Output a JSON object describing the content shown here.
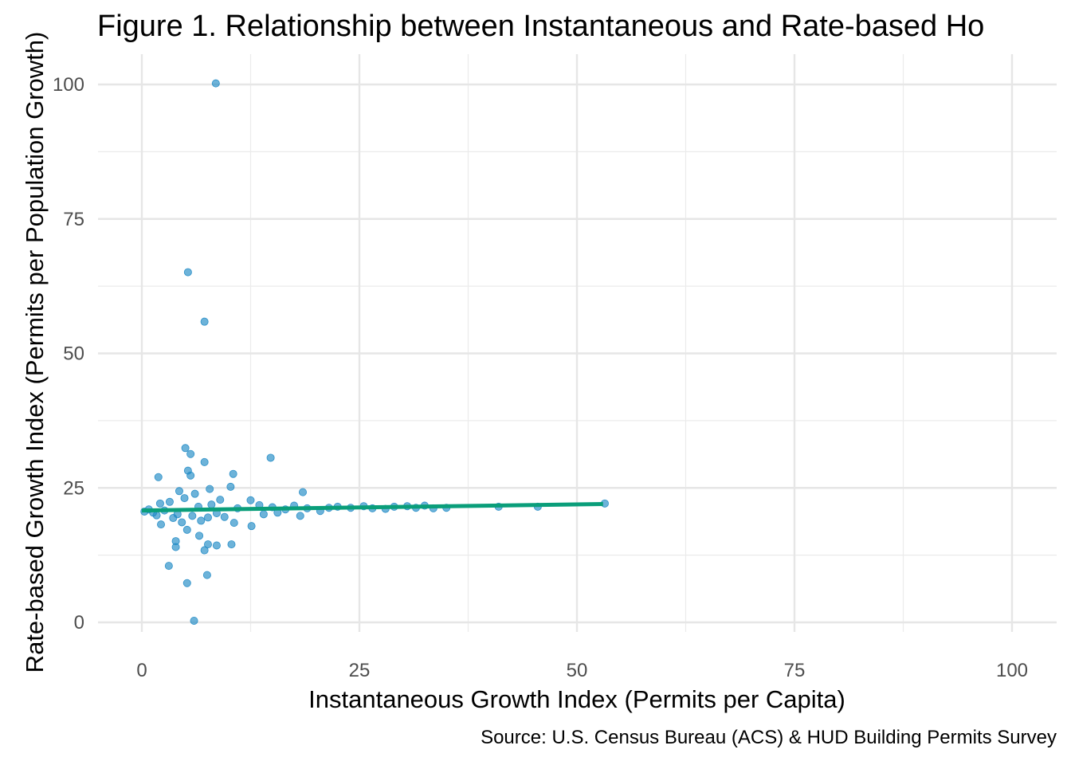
{
  "chart_data": {
    "type": "scatter",
    "title": "Figure 1. Relationship between Instantaneous and Rate-based Ho",
    "xlabel": "Instantaneous Growth Index (Permits per Capita)",
    "ylabel": "Rate-based Growth Index (Permits per Population Growth)",
    "caption": "Source: U.S. Census Bureau (ACS) & HUD Building Permits Survey",
    "xlim": [
      -5,
      105
    ],
    "ylim": [
      -2,
      105
    ],
    "x_ticks": [
      0,
      25,
      50,
      75,
      100
    ],
    "y_ticks": [
      0,
      25,
      50,
      75,
      100
    ],
    "x_tick_labels": [
      "0",
      "25",
      "50",
      "75",
      "100"
    ],
    "y_tick_labels": [
      "0",
      "25",
      "50",
      "75",
      "100"
    ],
    "grid": true,
    "legend": "none",
    "point_color": "#1f8ac5",
    "fit_color": "#0a9e7a",
    "fit_line": {
      "x": [
        0,
        53
      ],
      "y": [
        20.8,
        22.0
      ]
    },
    "points": [
      {
        "x": 8.5,
        "y": 100.2
      },
      {
        "x": 5.3,
        "y": 65.1
      },
      {
        "x": 7.2,
        "y": 55.9
      },
      {
        "x": 5.0,
        "y": 32.4
      },
      {
        "x": 5.6,
        "y": 31.3
      },
      {
        "x": 14.8,
        "y": 30.6
      },
      {
        "x": 7.2,
        "y": 29.8
      },
      {
        "x": 5.3,
        "y": 28.2
      },
      {
        "x": 5.6,
        "y": 27.3
      },
      {
        "x": 10.5,
        "y": 27.6
      },
      {
        "x": 1.9,
        "y": 27.0
      },
      {
        "x": 7.8,
        "y": 24.8
      },
      {
        "x": 18.5,
        "y": 24.2
      },
      {
        "x": 10.2,
        "y": 25.2
      },
      {
        "x": 4.3,
        "y": 24.4
      },
      {
        "x": 6.1,
        "y": 23.9
      },
      {
        "x": 3.2,
        "y": 22.4
      },
      {
        "x": 4.9,
        "y": 23.1
      },
      {
        "x": 9.0,
        "y": 22.8
      },
      {
        "x": 12.5,
        "y": 22.7
      },
      {
        "x": 2.1,
        "y": 22.1
      },
      {
        "x": 6.5,
        "y": 21.5
      },
      {
        "x": 8.0,
        "y": 21.9
      },
      {
        "x": 11.0,
        "y": 21.2
      },
      {
        "x": 13.5,
        "y": 21.8
      },
      {
        "x": 15.0,
        "y": 21.4
      },
      {
        "x": 16.5,
        "y": 21.0
      },
      {
        "x": 17.5,
        "y": 21.7
      },
      {
        "x": 19.0,
        "y": 21.2
      },
      {
        "x": 20.5,
        "y": 20.7
      },
      {
        "x": 21.5,
        "y": 21.3
      },
      {
        "x": 22.5,
        "y": 21.5
      },
      {
        "x": 24.0,
        "y": 21.3
      },
      {
        "x": 25.5,
        "y": 21.6
      },
      {
        "x": 26.5,
        "y": 21.2
      },
      {
        "x": 28.0,
        "y": 21.1
      },
      {
        "x": 29.0,
        "y": 21.5
      },
      {
        "x": 30.5,
        "y": 21.6
      },
      {
        "x": 31.5,
        "y": 21.3
      },
      {
        "x": 32.5,
        "y": 21.7
      },
      {
        "x": 33.5,
        "y": 21.2
      },
      {
        "x": 35.0,
        "y": 21.3
      },
      {
        "x": 41.0,
        "y": 21.5
      },
      {
        "x": 45.5,
        "y": 21.5
      },
      {
        "x": 53.2,
        "y": 22.1
      },
      {
        "x": 0.3,
        "y": 20.6
      },
      {
        "x": 0.8,
        "y": 21.0
      },
      {
        "x": 1.3,
        "y": 20.4
      },
      {
        "x": 1.7,
        "y": 19.9
      },
      {
        "x": 2.6,
        "y": 20.8
      },
      {
        "x": 3.6,
        "y": 19.4
      },
      {
        "x": 4.1,
        "y": 20.1
      },
      {
        "x": 4.6,
        "y": 18.6
      },
      {
        "x": 5.8,
        "y": 19.8
      },
      {
        "x": 6.8,
        "y": 18.9
      },
      {
        "x": 7.6,
        "y": 19.5
      },
      {
        "x": 8.6,
        "y": 20.3
      },
      {
        "x": 9.5,
        "y": 19.6
      },
      {
        "x": 10.6,
        "y": 18.5
      },
      {
        "x": 12.6,
        "y": 17.9
      },
      {
        "x": 14.0,
        "y": 20.1
      },
      {
        "x": 15.6,
        "y": 20.4
      },
      {
        "x": 18.2,
        "y": 19.8
      },
      {
        "x": 2.2,
        "y": 18.2
      },
      {
        "x": 5.2,
        "y": 17.2
      },
      {
        "x": 6.6,
        "y": 16.1
      },
      {
        "x": 3.9,
        "y": 15.1
      },
      {
        "x": 3.9,
        "y": 14.0
      },
      {
        "x": 7.6,
        "y": 14.5
      },
      {
        "x": 7.2,
        "y": 13.4
      },
      {
        "x": 8.6,
        "y": 14.3
      },
      {
        "x": 10.3,
        "y": 14.5
      },
      {
        "x": 3.1,
        "y": 10.5
      },
      {
        "x": 7.5,
        "y": 8.8
      },
      {
        "x": 5.2,
        "y": 7.3
      },
      {
        "x": 6.0,
        "y": 0.3
      }
    ]
  }
}
